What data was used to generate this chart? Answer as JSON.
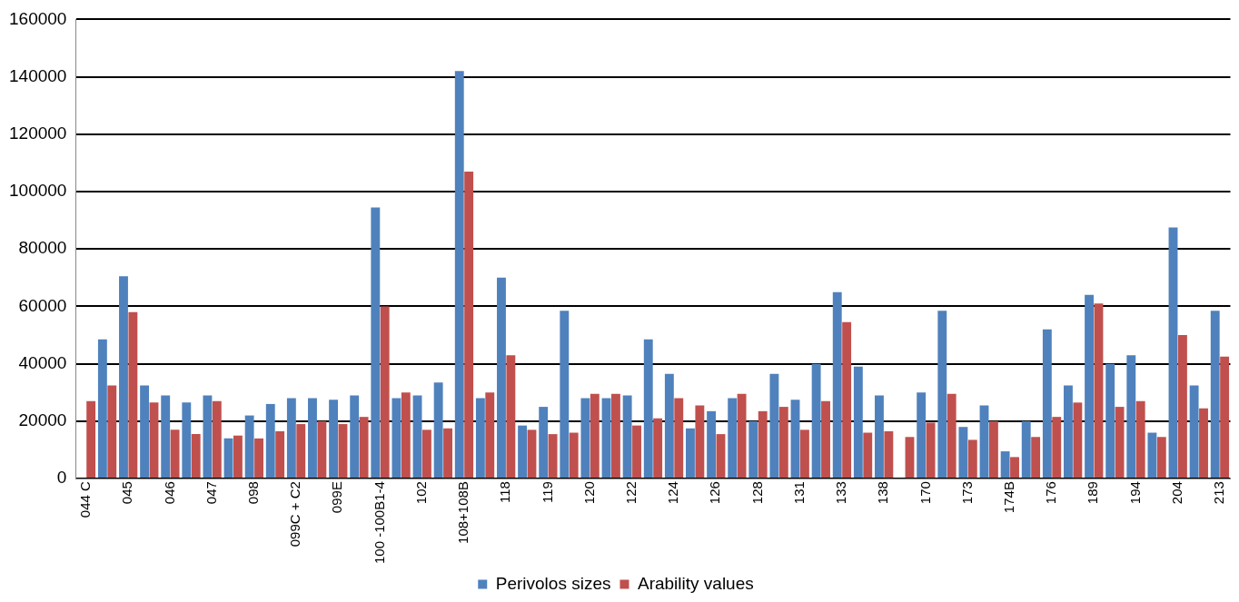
{
  "chart_data": {
    "type": "bar",
    "categories": [
      "044 C",
      null,
      "045",
      null,
      "046",
      null,
      "047",
      null,
      "098",
      null,
      "099C + C2",
      null,
      "099E",
      null,
      "100 -100B1-4",
      null,
      "102",
      null,
      "108+108B",
      null,
      "118",
      null,
      "119",
      null,
      "120",
      null,
      "122",
      null,
      "124",
      null,
      "126",
      null,
      "128",
      null,
      "131",
      null,
      "133",
      null,
      "138",
      null,
      "170",
      null,
      "173",
      null,
      "174B",
      null,
      "176",
      null,
      "189",
      null,
      "194",
      null,
      "204",
      null,
      "213"
    ],
    "series": [
      {
        "name": "Perivolos sizes",
        "color": "#4f81bd",
        "values": [
          null,
          48500,
          70500,
          32500,
          29000,
          26500,
          29000,
          14000,
          22000,
          26000,
          28000,
          28000,
          27500,
          29000,
          94500,
          28000,
          29000,
          33500,
          142000,
          28000,
          70000,
          18500,
          25000,
          58500,
          28000,
          28000,
          29000,
          48500,
          36500,
          17500,
          23500,
          28000,
          20000,
          36500,
          27500,
          40000,
          65000,
          39000,
          29000,
          null,
          30000,
          58500,
          18000,
          25500,
          9500,
          20000,
          52000,
          32500,
          64000,
          40000,
          43000,
          16000,
          87500,
          32500,
          58500
        ]
      },
      {
        "name": "Arability values",
        "color": "#c0504d",
        "values": [
          27000,
          32500,
          58000,
          26500,
          17000,
          15500,
          27000,
          15000,
          14000,
          16500,
          19000,
          20000,
          19000,
          21500,
          60000,
          30000,
          17000,
          17500,
          107000,
          30000,
          43000,
          17000,
          15500,
          16000,
          29500,
          29500,
          18500,
          21000,
          28000,
          25500,
          15500,
          29500,
          23500,
          25000,
          17000,
          27000,
          54500,
          16000,
          16500,
          14500,
          19500,
          29500,
          13500,
          20000,
          7500,
          14500,
          21500,
          26500,
          61000,
          25000,
          27000,
          14500,
          50000,
          24500,
          42500
        ]
      }
    ],
    "ylim": [
      0,
      160000
    ],
    "yticks": [
      0,
      20000,
      40000,
      60000,
      80000,
      100000,
      120000,
      140000,
      160000
    ],
    "grid": "y",
    "legend": "bottom"
  }
}
